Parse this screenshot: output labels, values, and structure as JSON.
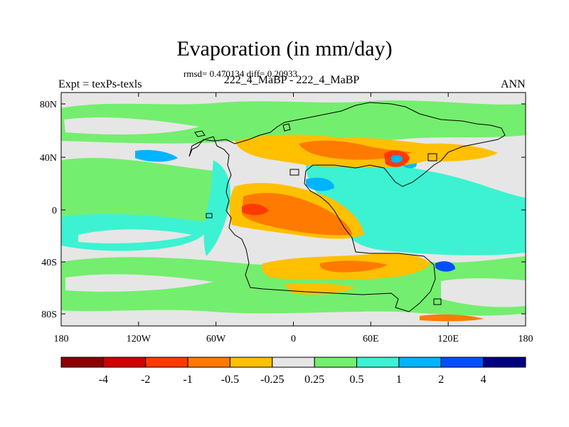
{
  "title": "Evaporation (in mm/day)",
  "stats": "rmsd= 0.470134 diff= 0.20933",
  "subtitle": "222_4_MaBP - 222_4_MaBP",
  "left_label": "Expt = texPs-texls",
  "right_label": "ANN",
  "lon_ticks": [
    "180",
    "120W",
    "60W",
    "0",
    "60E",
    "120E",
    "180"
  ],
  "lat_ticks": [
    "80N",
    "40N",
    "0",
    "40S",
    "80S"
  ],
  "colorbar": {
    "colors": [
      "#8b0000",
      "#d00000",
      "#ff3a00",
      "#ff7a00",
      "#ffc000",
      "#e6e6e6",
      "#74ee6e",
      "#3cf2d2",
      "#00b4ff",
      "#0050ff",
      "#000080"
    ],
    "labels": [
      "-4",
      "-2",
      "-1",
      "-0.5",
      "-0.25",
      "0.25",
      "0.5",
      "1",
      "2",
      "4"
    ]
  },
  "map_colors": {
    "neutral": "#e6e6e6",
    "green": "#74ee6e",
    "cyan": "#3cf2d2",
    "lightblue": "#00b4ff",
    "blue": "#0050ff",
    "yellow": "#ffc000",
    "orange": "#ff7a00",
    "red": "#ff3a00"
  }
}
